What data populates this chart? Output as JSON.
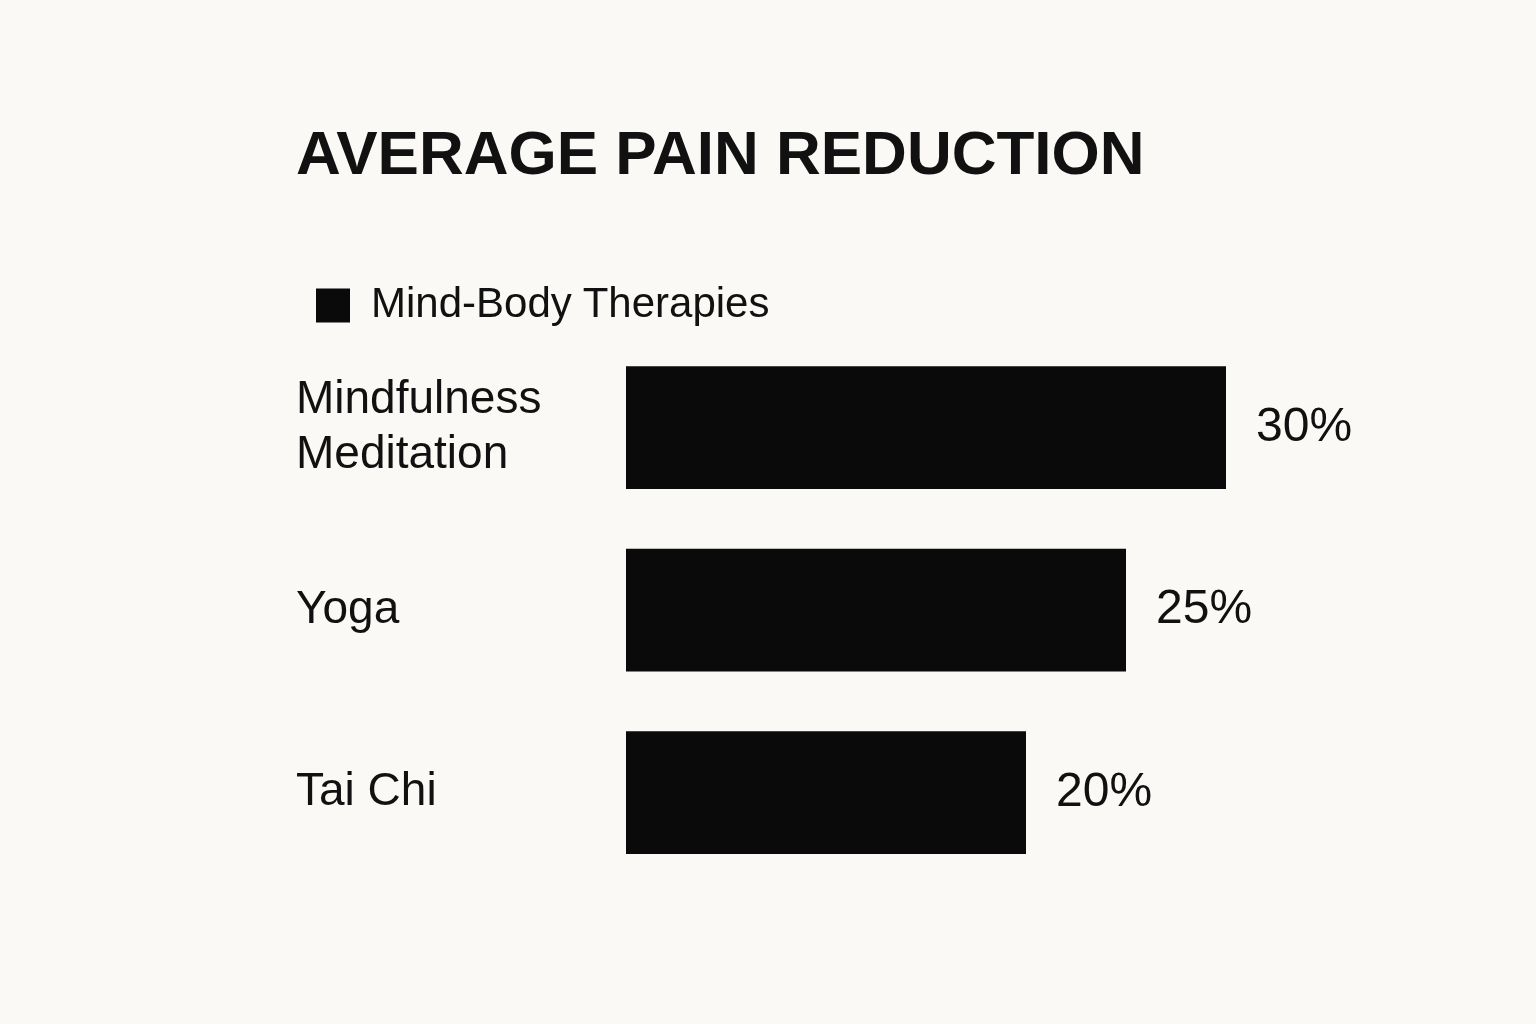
{
  "chart_data": {
    "type": "bar",
    "title": "AVERAGE PAIN REDUCTION",
    "orientation": "horizontal",
    "categories": [
      "Mindfulness Meditation",
      "Yoga",
      "Tai Chi"
    ],
    "series": [
      {
        "name": "Mind-Body Therapies",
        "color": "#0a0a0a",
        "values": [
          30,
          25,
          20
        ],
        "value_labels": [
          "30%",
          "25%",
          "20%"
        ]
      }
    ],
    "xlim": [
      0,
      30
    ],
    "tick_labels": "y",
    "legend": "top left"
  }
}
